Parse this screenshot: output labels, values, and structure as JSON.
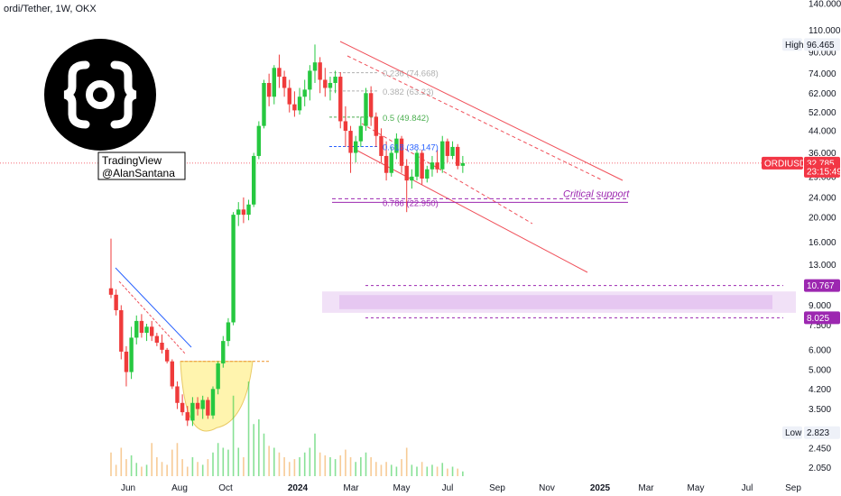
{
  "chart_data": {
    "type": "candlestick",
    "title": "ordi/Tether, 1W, OKX",
    "scale": "log",
    "ylim": [
      1.9,
      140
    ],
    "y_ticks": [
      "140.000",
      "110.000",
      "90.000",
      "74.000",
      "62.000",
      "52.000",
      "44.000",
      "36.000",
      "29.000",
      "24.000",
      "20.000",
      "16.000",
      "13.000",
      "9.000",
      "7.500",
      "6.000",
      "5.000",
      "4.200",
      "3.500",
      "2.450",
      "2.050"
    ],
    "x_ticks": [
      "Jun",
      "Aug",
      "Oct",
      "2024",
      "Mar",
      "May",
      "Jul",
      "Sep",
      "Nov",
      "2025",
      "Mar",
      "May",
      "Jul",
      "Sep"
    ],
    "candles": [
      {
        "o": 10.5,
        "h": 16.5,
        "l": 9.6,
        "c": 9.9
      },
      {
        "o": 9.9,
        "h": 10.4,
        "l": 8.2,
        "c": 8.6
      },
      {
        "o": 8.6,
        "h": 9.0,
        "l": 5.5,
        "c": 5.9
      },
      {
        "o": 5.9,
        "h": 6.2,
        "l": 4.3,
        "c": 4.9
      },
      {
        "o": 4.9,
        "h": 7.4,
        "l": 4.6,
        "c": 6.7
      },
      {
        "o": 6.7,
        "h": 8.2,
        "l": 6.3,
        "c": 7.8
      },
      {
        "o": 7.8,
        "h": 8.3,
        "l": 6.7,
        "c": 7.0
      },
      {
        "o": 7.0,
        "h": 7.6,
        "l": 6.5,
        "c": 7.4
      },
      {
        "o": 7.4,
        "h": 7.8,
        "l": 6.5,
        "c": 6.8
      },
      {
        "o": 6.8,
        "h": 7.0,
        "l": 6.2,
        "c": 6.4
      },
      {
        "o": 6.4,
        "h": 6.9,
        "l": 5.8,
        "c": 6.0
      },
      {
        "o": 6.0,
        "h": 6.1,
        "l": 5.3,
        "c": 5.4
      },
      {
        "o": 5.4,
        "h": 5.5,
        "l": 4.2,
        "c": 4.3
      },
      {
        "o": 4.3,
        "h": 4.5,
        "l": 3.5,
        "c": 3.7
      },
      {
        "o": 3.7,
        "h": 4.0,
        "l": 3.3,
        "c": 3.4
      },
      {
        "o": 3.4,
        "h": 3.6,
        "l": 3.0,
        "c": 3.15
      },
      {
        "o": 3.15,
        "h": 3.9,
        "l": 3.0,
        "c": 3.7
      },
      {
        "o": 3.7,
        "h": 3.9,
        "l": 3.3,
        "c": 3.5
      },
      {
        "o": 3.5,
        "h": 3.95,
        "l": 3.2,
        "c": 3.8
      },
      {
        "o": 3.8,
        "h": 3.9,
        "l": 3.2,
        "c": 3.3
      },
      {
        "o": 3.3,
        "h": 4.3,
        "l": 3.2,
        "c": 4.2
      },
      {
        "o": 4.2,
        "h": 5.4,
        "l": 4.0,
        "c": 5.3
      },
      {
        "o": 5.3,
        "h": 6.8,
        "l": 5.1,
        "c": 6.5
      },
      {
        "o": 6.5,
        "h": 8.0,
        "l": 6.2,
        "c": 7.7
      },
      {
        "o": 7.7,
        "h": 21.0,
        "l": 7.5,
        "c": 20.5
      },
      {
        "o": 20.5,
        "h": 23.0,
        "l": 18.5,
        "c": 21.5
      },
      {
        "o": 21.5,
        "h": 24.0,
        "l": 19.0,
        "c": 20.5
      },
      {
        "o": 20.5,
        "h": 23.5,
        "l": 19.5,
        "c": 22.5
      },
      {
        "o": 22.5,
        "h": 36.0,
        "l": 22.0,
        "c": 35.0
      },
      {
        "o": 35.0,
        "h": 48.0,
        "l": 34.0,
        "c": 46.0
      },
      {
        "o": 46.0,
        "h": 70.0,
        "l": 45.0,
        "c": 68.0
      },
      {
        "o": 68.0,
        "h": 74.0,
        "l": 55.0,
        "c": 60.0
      },
      {
        "o": 60.0,
        "h": 80.0,
        "l": 56.0,
        "c": 78.0
      },
      {
        "o": 78.0,
        "h": 88.0,
        "l": 65.0,
        "c": 72.0
      },
      {
        "o": 72.0,
        "h": 76.0,
        "l": 60.0,
        "c": 65.0
      },
      {
        "o": 65.0,
        "h": 70.0,
        "l": 52.0,
        "c": 56.0
      },
      {
        "o": 56.0,
        "h": 63.0,
        "l": 50.0,
        "c": 53.0
      },
      {
        "o": 53.0,
        "h": 65.0,
        "l": 51.0,
        "c": 60.0
      },
      {
        "o": 60.0,
        "h": 70.0,
        "l": 55.0,
        "c": 64.0
      },
      {
        "o": 64.0,
        "h": 80.0,
        "l": 58.0,
        "c": 76.0
      },
      {
        "o": 76.0,
        "h": 96.465,
        "l": 68.0,
        "c": 82.0
      },
      {
        "o": 82.0,
        "h": 86.0,
        "l": 62.0,
        "c": 70.0
      },
      {
        "o": 70.0,
        "h": 78.0,
        "l": 60.0,
        "c": 65.0
      },
      {
        "o": 65.0,
        "h": 72.0,
        "l": 58.0,
        "c": 68.0
      },
      {
        "o": 68.0,
        "h": 76.0,
        "l": 62.0,
        "c": 72.0
      },
      {
        "o": 72.0,
        "h": 75.0,
        "l": 45.0,
        "c": 48.0
      },
      {
        "o": 48.0,
        "h": 55.0,
        "l": 38.0,
        "c": 44.0
      },
      {
        "o": 44.0,
        "h": 46.0,
        "l": 30.0,
        "c": 36.0
      },
      {
        "o": 36.0,
        "h": 42.0,
        "l": 33.0,
        "c": 40.0
      },
      {
        "o": 40.0,
        "h": 50.0,
        "l": 38.0,
        "c": 46.0
      },
      {
        "o": 46.0,
        "h": 65.0,
        "l": 44.0,
        "c": 62.0
      },
      {
        "o": 62.0,
        "h": 66.0,
        "l": 46.0,
        "c": 50.0
      },
      {
        "o": 50.0,
        "h": 52.0,
        "l": 38.0,
        "c": 42.0
      },
      {
        "o": 42.0,
        "h": 45.0,
        "l": 33.0,
        "c": 35.0
      },
      {
        "o": 35.0,
        "h": 40.0,
        "l": 28.0,
        "c": 30.0
      },
      {
        "o": 30.0,
        "h": 38.0,
        "l": 29.0,
        "c": 36.0
      },
      {
        "o": 36.0,
        "h": 43.0,
        "l": 34.0,
        "c": 41.0
      },
      {
        "o": 41.0,
        "h": 42.0,
        "l": 30.0,
        "c": 32.0
      },
      {
        "o": 32.0,
        "h": 34.0,
        "l": 21.0,
        "c": 28.0
      },
      {
        "o": 28.0,
        "h": 31.0,
        "l": 26.0,
        "c": 29.0
      },
      {
        "o": 29.0,
        "h": 37.0,
        "l": 28.0,
        "c": 36.0
      },
      {
        "o": 36.0,
        "h": 37.0,
        "l": 27.0,
        "c": 28.5
      },
      {
        "o": 28.5,
        "h": 32.0,
        "l": 27.5,
        "c": 31.0
      },
      {
        "o": 31.0,
        "h": 35.0,
        "l": 29.0,
        "c": 33.0
      },
      {
        "o": 33.0,
        "h": 37.0,
        "l": 30.0,
        "c": 31.0
      },
      {
        "o": 31.0,
        "h": 42.0,
        "l": 30.0,
        "c": 40.0
      },
      {
        "o": 40.0,
        "h": 41.0,
        "l": 33.0,
        "c": 35.0
      },
      {
        "o": 35.0,
        "h": 40.0,
        "l": 34.0,
        "c": 38.0
      },
      {
        "o": 38.0,
        "h": 39.0,
        "l": 31.0,
        "c": 32.0
      },
      {
        "o": 32.0,
        "h": 35.0,
        "l": 30.0,
        "c": 32.785
      }
    ],
    "volume": [
      0.25,
      0.12,
      0.3,
      0.18,
      0.22,
      0.14,
      0.1,
      0.12,
      0.35,
      0.2,
      0.15,
      0.12,
      0.28,
      0.35,
      0.18,
      0.1,
      0.2,
      0.15,
      0.12,
      0.18,
      0.25,
      0.35,
      0.3,
      0.28,
      0.85,
      0.3,
      0.2,
      1.0,
      0.55,
      0.6,
      0.45,
      0.32,
      0.3,
      0.25,
      0.2,
      0.15,
      0.18,
      0.2,
      0.25,
      0.3,
      0.45,
      0.25,
      0.22,
      0.2,
      0.18,
      0.22,
      0.28,
      0.2,
      0.15,
      0.2,
      0.25,
      0.2,
      0.15,
      0.12,
      0.15,
      0.12,
      0.1,
      0.18,
      0.3,
      0.12,
      0.1,
      0.15,
      0.1,
      0.12,
      0.1,
      0.14,
      0.08,
      0.1,
      0.08,
      0.05
    ],
    "fib_levels": [
      {
        "label": "0.236 (74.668)",
        "value": 74.668,
        "color": "#b0b0b0"
      },
      {
        "label": "0.382 (63.23)",
        "value": 63.23,
        "color": "#b0b0b0"
      },
      {
        "label": "0.5 (49.842)",
        "value": 49.842,
        "color": "#4caf50"
      },
      {
        "label": "0.618 (38.147)",
        "value": 38.147,
        "color": "#2962ff"
      },
      {
        "label": "0.786 (22.950)",
        "value": 22.95,
        "color": "#9c27b0"
      }
    ],
    "annotations": {
      "critical_support": "Critical support",
      "watermark_line1": "TradingView",
      "watermark_line2": "@AlanSantana"
    },
    "price_labels": {
      "high_label": "High",
      "high_value": "96.465",
      "low_label": "Low",
      "low_value": "2.823",
      "symbol": "ORDIUSDT",
      "last_price": "32.785",
      "countdown": "23:15:49",
      "zone_top": "10.767",
      "zone_bottom": "8.025"
    },
    "colors": {
      "up": "#26c840",
      "down": "#ef3b3b",
      "channel": "#f0505a",
      "purple": "#9c27b0",
      "zone": "#e6c8f0",
      "cup": "#fff3a0",
      "last": "#f23645"
    }
  }
}
